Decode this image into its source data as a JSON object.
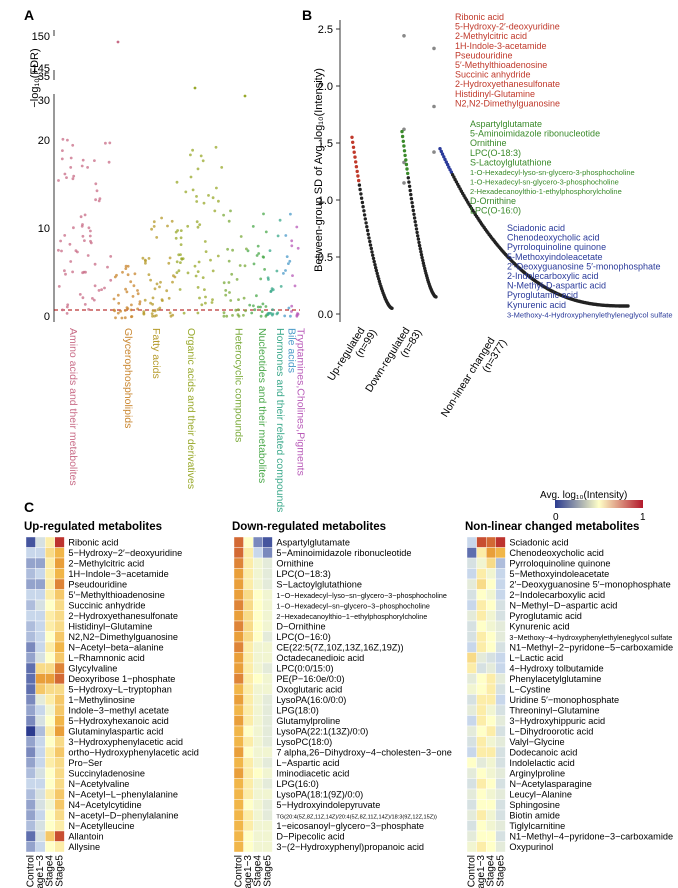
{
  "panelA": {
    "label": "A",
    "ylabel": "−log₁₀(FDR)",
    "yticks_lower": [
      "0",
      "10",
      "20"
    ],
    "yticks_upper": [
      "30",
      "35"
    ],
    "yticks_top": [
      "145",
      "150"
    ],
    "categories": [
      {
        "name": "Amino acids and their metabolites",
        "color": "#c86b86",
        "n": 70
      },
      {
        "name": "Glycerophospholipids",
        "color": "#c8842c",
        "n": 35
      },
      {
        "name": "Fatty acids",
        "color": "#b59a2a",
        "n": 45
      },
      {
        "name": "Organic acids and their derivatives",
        "color": "#98a82a",
        "n": 60
      },
      {
        "name": "Heterocyclic compounds",
        "color": "#7aaa3a",
        "n": 30
      },
      {
        "name": "Nucleotides and their metabolites",
        "color": "#4aa84a",
        "n": 25
      },
      {
        "name": "Hormones and their related compounds",
        "color": "#3aa88a",
        "n": 20
      },
      {
        "name": "Bile acids",
        "color": "#4a9ac8",
        "n": 10
      },
      {
        "name": "Tryptamines,Cholines,Pigments",
        "color": "#b85ab8",
        "n": 12
      }
    ]
  },
  "panelB": {
    "label": "B",
    "ylabel": "Between-group SD of Avg. log₁₀(Intensity)",
    "yticks": [
      "0.0",
      "0.5",
      "1.0",
      "1.5",
      "2.0",
      "2.5"
    ],
    "groups": [
      {
        "label": "Up-regulated",
        "n": "(n=99)",
        "color": "#c0392b",
        "names": [
          "Ribonic acid",
          "5-Hydroxy-2′-deoxyuridine",
          "2-Methylcitric acid",
          "1H-Indole-3-acetamide",
          "Pseudouridine",
          "5′-Methylthioadenosine",
          "Succinic anhydride",
          "2-Hydroxyethanesulfonate",
          "Histidinyl-Glutamine",
          "N2,N2-Dimethylguanosine"
        ]
      },
      {
        "label": "Down-regulated",
        "n": "(n=83)",
        "color": "#3a8a2a",
        "names": [
          "Aspartylglutamate",
          "5-Aminoimidazole ribonucleotide",
          "Ornithine",
          "LPC(O-18:3)",
          "S-Lactoylglutathione",
          "1-O-Hexadecyl-lyso-sn-glycero-3-phosphocholine",
          "1-O-Hexadecyl-sn-glycero-3-phosphocholine",
          "2-Hexadecanoylthio-1-ethylphosphorylcholine",
          "D-Ornithine",
          "LPC(O-16:0)"
        ]
      },
      {
        "label": "Non-linear changed",
        "n": "(n=377)",
        "color": "#2a3a9a",
        "names": [
          "Sciadonic acid",
          "Chenodeoxycholic acid",
          "Pyrroloquinoline quinone",
          "5-Methoxyindoleacetate",
          "2′-Deoxyguanosine 5′-monophosphate",
          "2-Indolecarboxylic acid",
          "N-Methyl-D-aspartic acid",
          "Pyroglutamic acid",
          "Kynurenic acid",
          "3-Methoxy-4-Hydroxyphenylethyleneglycol sulfate"
        ]
      }
    ]
  },
  "panelC": {
    "label": "C",
    "legend_title": "Avg. log₁₀(Intensity)",
    "legend_min": "0",
    "legend_max": "1",
    "columns": [
      "Control",
      "Stage1−3",
      "Stage4",
      "Stage5"
    ],
    "heatmaps": [
      {
        "title": "Up-regulated metabolites",
        "rows": [
          "Ribonic acid",
          "5−Hydroxy−2′−deoxyuridine",
          "2−Methylcitric acid",
          "1H−Indole−3−acetamide",
          "Pseudouridine",
          "5′−Methylthioadenosine",
          "Succinic anhydride",
          "2−Hydroxyethanesulfonate",
          "Histidinyl−Glutamine",
          "N2,N2−Dimethylguanosine",
          "N−Acetyl−beta−alanine",
          "L−Rhamnonic acid",
          "Glycylvaline",
          "Deoxyribose 1−phosphate",
          "5−Hydroxy−L−tryptophan",
          "1−Methylinosine",
          "Indole−3−methyl acetate",
          "5−Hydroxyhexanoic acid",
          "Glutaminylaspartic acid",
          "3−Hydroxyphenylacetic acid",
          "ortho−Hydroxyphenylacetic acid",
          "Pro−Ser",
          "Succinyladenosine",
          "N−Acetylvaline",
          "N−Acetyl−L−phenylalanine",
          "N4−Acetylcytidine",
          "N−acetyl−D−phenylalanine",
          "N−Acetylleucine",
          "Allantoin",
          "Allysine"
        ],
        "values": [
          [
            0.05,
            0.35,
            0.55,
            0.95
          ],
          [
            0.3,
            0.3,
            0.6,
            0.7
          ],
          [
            0.2,
            0.2,
            0.55,
            0.75
          ],
          [
            0.25,
            0.3,
            0.55,
            0.7
          ],
          [
            0.2,
            0.2,
            0.55,
            0.8
          ],
          [
            0.3,
            0.3,
            0.55,
            0.65
          ],
          [
            0.25,
            0.35,
            0.5,
            0.6
          ],
          [
            0.3,
            0.3,
            0.55,
            0.6
          ],
          [
            0.25,
            0.3,
            0.55,
            0.6
          ],
          [
            0.25,
            0.3,
            0.5,
            0.65
          ],
          [
            0.15,
            0.3,
            0.55,
            0.7
          ],
          [
            0.2,
            0.35,
            0.5,
            0.65
          ],
          [
            0.1,
            0.6,
            0.6,
            0.8
          ],
          [
            0.1,
            0.75,
            0.75,
            0.85
          ],
          [
            0.1,
            0.65,
            0.6,
            0.6
          ],
          [
            0.15,
            0.4,
            0.55,
            0.65
          ],
          [
            0.2,
            0.3,
            0.45,
            0.65
          ],
          [
            0.15,
            0.35,
            0.5,
            0.7
          ],
          [
            0.0,
            0.25,
            0.55,
            0.75
          ],
          [
            0.2,
            0.3,
            0.5,
            0.6
          ],
          [
            0.15,
            0.3,
            0.55,
            0.65
          ],
          [
            0.2,
            0.3,
            0.55,
            0.6
          ],
          [
            0.25,
            0.35,
            0.5,
            0.6
          ],
          [
            0.3,
            0.3,
            0.5,
            0.6
          ],
          [
            0.25,
            0.35,
            0.55,
            0.65
          ],
          [
            0.2,
            0.35,
            0.45,
            0.65
          ],
          [
            0.2,
            0.3,
            0.5,
            0.6
          ],
          [
            0.25,
            0.35,
            0.5,
            0.55
          ],
          [
            0.1,
            0.35,
            0.65,
            0.9
          ],
          [
            0.2,
            0.3,
            0.5,
            0.55
          ]
        ]
      },
      {
        "title": "Down-regulated metabolites",
        "rows": [
          "Aspartylglutamate",
          "5−Aminoimidazole ribonucleotide",
          "Ornithine",
          "LPC(O−18:3)",
          "S−Lactoylglutathione",
          "1−O−Hexadecyl−lyso−sn−glycero−3−phosphocholine",
          "1−O−Hexadecyl−sn−glycero−3−phosphocholine",
          "2−Hexadecanoylthio−1−ethylphosphorylcholine",
          "D−Ornithine",
          "LPC(O−16:0)",
          "CE(22:5(7Z,10Z,13Z,16Z,19Z))",
          "Octadecanedioic acid",
          "LPC(0:0/15:0)",
          "PE(P−16:0e/0:0)",
          "Oxoglutaric acid",
          "LysoPA(16:0/0:0)",
          "LPG(18:0)",
          "Glutamylproline",
          "LysoPA(22:1(13Z)/0:0)",
          "LysoPC(18:0)",
          "7 alpha,26−Dihydroxy−4−cholesten−3−one",
          "L−Aspartic acid",
          "Iminodiacetic acid",
          "LPG(16:0)",
          "LysoPA(18:1(9Z)/0:0)",
          "5−Hydroxyindolepyruvate",
          "TG(20:4(5Z,8Z,11Z,14Z)/20:4(5Z,8Z,11Z,14Z)/18:3(9Z,12Z,15Z))",
          "1−eicosanoyl−glycero−3−phosphate",
          "D−Pipecolic acid",
          "3−(2−Hydroxyphenyl)propanoic acid"
        ],
        "values": [
          [
            0.85,
            0.5,
            0.15,
            0.05
          ],
          [
            0.85,
            0.55,
            0.3,
            0.15
          ],
          [
            0.8,
            0.55,
            0.45,
            0.4
          ],
          [
            0.75,
            0.55,
            0.45,
            0.4
          ],
          [
            0.75,
            0.55,
            0.45,
            0.4
          ],
          [
            0.75,
            0.6,
            0.5,
            0.45
          ],
          [
            0.8,
            0.6,
            0.5,
            0.45
          ],
          [
            0.75,
            0.6,
            0.5,
            0.45
          ],
          [
            0.8,
            0.6,
            0.5,
            0.45
          ],
          [
            0.75,
            0.6,
            0.5,
            0.4
          ],
          [
            0.8,
            0.55,
            0.45,
            0.45
          ],
          [
            0.75,
            0.55,
            0.45,
            0.45
          ],
          [
            0.75,
            0.55,
            0.45,
            0.4
          ],
          [
            0.8,
            0.55,
            0.5,
            0.45
          ],
          [
            0.7,
            0.55,
            0.45,
            0.45
          ],
          [
            0.75,
            0.55,
            0.45,
            0.4
          ],
          [
            0.7,
            0.55,
            0.45,
            0.4
          ],
          [
            0.75,
            0.55,
            0.45,
            0.4
          ],
          [
            0.7,
            0.5,
            0.45,
            0.4
          ],
          [
            0.7,
            0.55,
            0.45,
            0.4
          ],
          [
            0.75,
            0.5,
            0.45,
            0.45
          ],
          [
            0.7,
            0.55,
            0.45,
            0.4
          ],
          [
            0.75,
            0.55,
            0.5,
            0.45
          ],
          [
            0.7,
            0.55,
            0.45,
            0.4
          ],
          [
            0.7,
            0.55,
            0.45,
            0.45
          ],
          [
            0.7,
            0.5,
            0.45,
            0.4
          ],
          [
            0.7,
            0.55,
            0.45,
            0.4
          ],
          [
            0.7,
            0.55,
            0.45,
            0.45
          ],
          [
            0.7,
            0.5,
            0.45,
            0.45
          ],
          [
            0.7,
            0.5,
            0.45,
            0.45
          ]
        ]
      },
      {
        "title": "Non-linear changed metabolites",
        "rows": [
          "Sciadonic acid",
          "Chenodeoxycholic acid",
          "Pyrroloquinoline quinone",
          "5−Methoxyindoleacetate",
          "2′−Deoxyguanosine 5′−monophosphate",
          "2−Indolecarboxylic acid",
          "N−Methyl−D−aspartic acid",
          "Pyroglutamic acid",
          "Kynurenic acid",
          "3−Methoxy−4−hydroxyphenylethyleneglycol sulfate",
          "N1−Methyl−2−pyridone−5−carboxamide",
          "L−Lactic acid",
          "4−Hydroxy tolbutamide",
          "Phenylacetylglutamine",
          "L−Cystine",
          "Uridine 5′−monophosphate",
          "Threoninyl−Glutamine",
          "3−Hydroxyhippuric acid",
          "L−Dihydroorotic acid",
          "Valyl−Glycine",
          "Dodecanoic acid",
          "Indolelactic acid",
          "Arginylproline",
          "N−Acetylasparagine",
          "Leucyl−Alanine",
          "Sphingosine",
          "Biotin amide",
          "Tiglylcarnitine",
          "N1−Methyl−4−pyridone−3−carboxamide",
          "Oxypurinol"
        ],
        "values": [
          [
            0.3,
            0.9,
            0.85,
            0.95
          ],
          [
            0.1,
            0.55,
            0.75,
            0.7
          ],
          [
            0.35,
            0.45,
            0.6,
            0.25
          ],
          [
            0.3,
            0.55,
            0.45,
            0.3
          ],
          [
            0.4,
            0.6,
            0.5,
            0.3
          ],
          [
            0.35,
            0.5,
            0.45,
            0.3
          ],
          [
            0.3,
            0.55,
            0.5,
            0.35
          ],
          [
            0.4,
            0.55,
            0.45,
            0.35
          ],
          [
            0.35,
            0.5,
            0.45,
            0.4
          ],
          [
            0.35,
            0.55,
            0.5,
            0.4
          ],
          [
            0.3,
            0.55,
            0.5,
            0.35
          ],
          [
            0.6,
            0.4,
            0.35,
            0.3
          ],
          [
            0.55,
            0.35,
            0.4,
            0.3
          ],
          [
            0.4,
            0.5,
            0.55,
            0.4
          ],
          [
            0.45,
            0.5,
            0.55,
            0.35
          ],
          [
            0.35,
            0.55,
            0.55,
            0.3
          ],
          [
            0.4,
            0.55,
            0.45,
            0.35
          ],
          [
            0.3,
            0.55,
            0.5,
            0.4
          ],
          [
            0.4,
            0.5,
            0.55,
            0.35
          ],
          [
            0.35,
            0.55,
            0.45,
            0.4
          ],
          [
            0.3,
            0.55,
            0.55,
            0.35
          ],
          [
            0.5,
            0.4,
            0.45,
            0.35
          ],
          [
            0.4,
            0.5,
            0.45,
            0.4
          ],
          [
            0.35,
            0.55,
            0.5,
            0.35
          ],
          [
            0.4,
            0.5,
            0.45,
            0.4
          ],
          [
            0.35,
            0.5,
            0.5,
            0.35
          ],
          [
            0.4,
            0.55,
            0.45,
            0.35
          ],
          [
            0.35,
            0.5,
            0.45,
            0.4
          ],
          [
            0.4,
            0.5,
            0.5,
            0.35
          ],
          [
            0.45,
            0.55,
            0.5,
            0.4
          ]
        ]
      }
    ]
  },
  "chart_data": [
    {
      "type": "scatter",
      "panel": "A",
      "title": "",
      "xlabel": "",
      "ylabel": "−log₁₀(FDR)",
      "ylim": [
        0,
        150
      ],
      "axis_break": [
        [
          0,
          22
        ],
        [
          28,
          36
        ],
        [
          144,
          151
        ]
      ],
      "threshold_line_y": 1.3,
      "categories": [
        "Amino acids and their metabolites",
        "Glycerophospholipids",
        "Fatty acids",
        "Organic acids and their derivatives",
        "Heterocyclic compounds",
        "Nucleotides and their metabolites",
        "Hormones and their related compounds",
        "Bile acids",
        "Tryptamines,Cholines,Pigments"
      ]
    },
    {
      "type": "scatter",
      "panel": "B",
      "title": "",
      "ylabel": "Between-group SD of Avg. log₁₀(Intensity)",
      "ylim": [
        0,
        2.6
      ],
      "series": [
        {
          "name": "Up-regulated",
          "n": 99,
          "start": 1.55,
          "end": 0.05,
          "outliers": [
            2.44,
            1.62,
            1.33,
            1.15
          ]
        },
        {
          "name": "Down-regulated",
          "n": 83,
          "start": 1.6,
          "end": 0.15,
          "outliers": [
            2.33,
            1.82,
            1.42
          ]
        },
        {
          "name": "Non-linear changed",
          "n": 377,
          "start": 1.45,
          "end": 0.07,
          "outliers": []
        }
      ]
    },
    {
      "type": "heatmap",
      "panel": "C",
      "title": "Up-regulated / Down-regulated / Non-linear changed metabolites",
      "columns": [
        "Control",
        "Stage1−3",
        "Stage4",
        "Stage5"
      ],
      "colorscale": {
        "min": 0,
        "max": 1,
        "low": "#2b3b8f",
        "mid": "#ffffc8",
        "high": "#b2182b"
      }
    }
  ]
}
